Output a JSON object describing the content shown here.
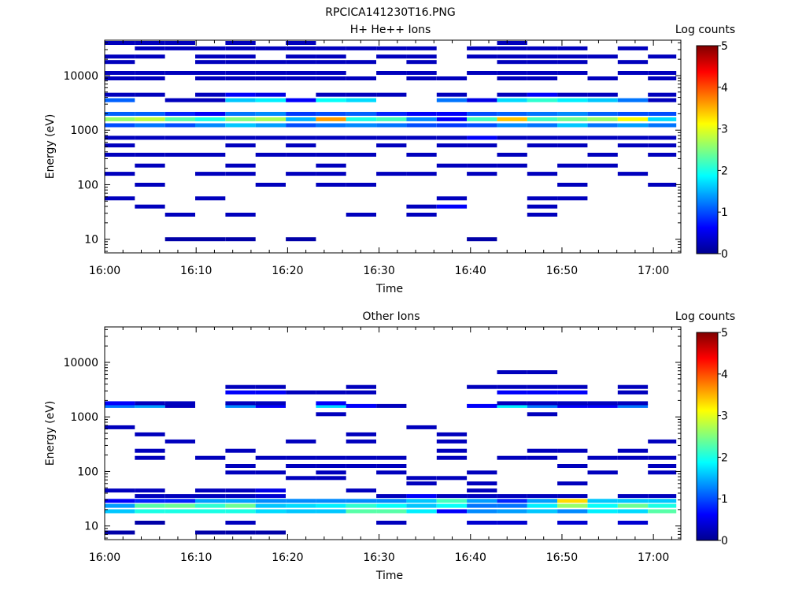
{
  "figure_title": "RPCICA141230T16.PNG",
  "chart_data": [
    {
      "type": "heatmap",
      "title": "H+ He++ Ions",
      "xlabel": "Time",
      "ylabel": "Energy (eV)",
      "x_ticks": [
        "16:00",
        "16:10",
        "16:20",
        "16:30",
        "16:40",
        "16:50",
        "17:00"
      ],
      "x_range_minutes": [
        0,
        63
      ],
      "y_ticks": [
        "10",
        "100",
        "1000",
        "10000"
      ],
      "y_range_log10": [
        0.75,
        4.65
      ],
      "y_scale": "log",
      "colorbar": {
        "label": "Log counts",
        "ticks": [
          "0",
          "1",
          "2",
          "3",
          "4",
          "5"
        ],
        "range": [
          0,
          5
        ]
      },
      "time_columns_minutes": [
        0,
        3.3,
        6.6,
        9.9,
        13.2,
        16.5,
        19.8,
        23.1,
        26.4,
        29.7,
        33.0,
        36.3,
        39.6,
        42.9,
        46.2,
        49.5,
        52.8,
        56.1,
        59.4
      ],
      "rows": [
        {
          "log_e": 1.0,
          "counts": [
            0,
            0,
            0.2,
            0.2,
            0.2,
            0,
            0.2,
            0,
            0,
            0,
            0,
            0,
            0.2,
            0,
            0,
            0,
            0,
            0,
            0
          ]
        },
        {
          "log_e": 1.45,
          "counts": [
            0,
            0,
            0.3,
            0,
            0.3,
            0,
            0,
            0,
            0,
            0,
            0,
            0,
            0,
            0,
            0,
            0,
            0,
            0,
            0
          ]
        },
        {
          "log_e": 1.45,
          "counts": [
            0,
            0,
            0,
            0,
            0,
            0,
            0,
            0,
            0.3,
            0,
            0.3,
            0,
            0,
            0,
            0.3,
            0,
            0,
            0,
            0
          ]
        },
        {
          "log_e": 1.6,
          "counts": [
            0,
            0.3,
            0,
            0,
            0,
            0,
            0,
            0,
            0,
            0,
            0.3,
            0.6,
            0,
            0,
            0.3,
            0,
            0,
            0,
            0
          ]
        },
        {
          "log_e": 1.75,
          "counts": [
            0.3,
            0,
            0,
            0.3,
            0,
            0,
            0,
            0,
            0,
            0,
            0,
            0.3,
            0,
            0,
            0.3,
            0.3,
            0,
            0,
            0
          ]
        },
        {
          "log_e": 2.0,
          "counts": [
            0,
            0.3,
            0,
            0,
            0,
            0.3,
            0,
            0.3,
            0.3,
            0,
            0,
            0,
            0,
            0,
            0,
            0.3,
            0,
            0,
            0.3
          ]
        },
        {
          "log_e": 2.2,
          "counts": [
            0.3,
            0,
            0,
            0.3,
            0.3,
            0,
            0.3,
            0.3,
            0,
            0.3,
            0.3,
            0,
            0.3,
            0,
            0.3,
            0,
            0,
            0.3,
            0
          ]
        },
        {
          "log_e": 2.35,
          "counts": [
            0,
            0.3,
            0,
            0,
            0.3,
            0,
            0,
            0.3,
            0,
            0,
            0,
            0.3,
            0.3,
            0.3,
            0,
            0.3,
            0.3,
            0,
            0
          ]
        },
        {
          "log_e": 2.55,
          "counts": [
            0.3,
            0.3,
            0.3,
            0.3,
            0,
            0.3,
            0.3,
            0.3,
            0.3,
            0,
            0.3,
            0,
            0,
            0.3,
            0,
            0,
            0.3,
            0,
            0.3
          ]
        },
        {
          "log_e": 2.72,
          "counts": [
            0.3,
            0,
            0,
            0,
            0.3,
            0,
            0.3,
            0,
            0,
            0.3,
            0,
            0.3,
            0.3,
            0,
            0.3,
            0.3,
            0,
            0.3,
            0.3
          ]
        },
        {
          "log_e": 2.86,
          "counts": [
            0.3,
            0.3,
            0.3,
            0.3,
            0.3,
            0.3,
            0.3,
            0.3,
            0.3,
            0.3,
            0.3,
            0.3,
            0.6,
            0.3,
            0.3,
            0.3,
            0.3,
            0.3,
            0.3
          ]
        },
        {
          "log_e": 3.09,
          "counts": [
            1.0,
            1.2,
            1.0,
            1.3,
            1.6,
            1.4,
            1.0,
            1.2,
            1.3,
            1.2,
            1.0,
            0.9,
            1.0,
            1.3,
            1.2,
            1.6,
            1.2,
            1.4,
            1.2
          ]
        },
        {
          "log_e": 3.2,
          "counts": [
            2.6,
            2.8,
            2.3,
            2.0,
            2.5,
            2.7,
            1.5,
            3.6,
            2.0,
            2.2,
            1.3,
            0.6,
            2.2,
            3.4,
            2.2,
            2.4,
            2.6,
            3.1,
            1.7
          ]
        },
        {
          "log_e": 3.3,
          "counts": [
            1.1,
            1.1,
            0.8,
            0.6,
            1.2,
            1.3,
            0.9,
            1.0,
            1.1,
            0.8,
            0.6,
            0.6,
            1.0,
            1.1,
            1.2,
            1.3,
            1.1,
            1.0,
            1.0
          ]
        },
        {
          "log_e": 3.55,
          "counts": [
            1.1,
            0,
            0.3,
            0.3,
            1.6,
            1.8,
            0.6,
            1.9,
            1.7,
            0,
            0,
            1.2,
            0.5,
            1.7,
            2.1,
            1.8,
            1.6,
            1.2,
            0.3
          ]
        },
        {
          "log_e": 3.65,
          "counts": [
            0.3,
            0.3,
            0,
            0.3,
            0.6,
            0.5,
            0,
            0.3,
            0.3,
            0.3,
            0,
            0.3,
            0,
            0.3,
            0.6,
            0.3,
            0.3,
            0,
            0.3
          ]
        },
        {
          "log_e": 3.95,
          "counts": [
            0.3,
            0.3,
            0,
            0.3,
            0.3,
            0.3,
            0.3,
            0.3,
            0.3,
            0,
            0.3,
            0.3,
            0,
            0.3,
            0.3,
            0,
            0.3,
            0,
            0.3
          ]
        },
        {
          "log_e": 4.05,
          "counts": [
            0.3,
            0.3,
            0.3,
            0.3,
            0.3,
            0.3,
            0.3,
            0.3,
            0,
            0.3,
            0.3,
            0,
            0.3,
            0.3,
            0.3,
            0.3,
            0,
            0.3,
            0.3
          ]
        },
        {
          "log_e": 4.25,
          "counts": [
            0.3,
            0,
            0,
            0.3,
            0.3,
            0.3,
            0.3,
            0.3,
            0.3,
            0,
            0.3,
            0,
            0,
            0.3,
            0.3,
            0.3,
            0,
            0.3,
            0
          ]
        },
        {
          "log_e": 4.35,
          "counts": [
            0.3,
            0.3,
            0,
            0.3,
            0.3,
            0,
            0.3,
            0.3,
            0,
            0.3,
            0.3,
            0,
            0.3,
            0.3,
            0.3,
            0.3,
            0.3,
            0,
            0.3
          ]
        },
        {
          "log_e": 4.5,
          "counts": [
            0,
            0.3,
            0.3,
            0.3,
            0.3,
            0.3,
            0.3,
            0.3,
            0.3,
            0.3,
            0.3,
            0,
            0.3,
            0.3,
            0.3,
            0.3,
            0,
            0.3,
            0
          ]
        },
        {
          "log_e": 4.6,
          "counts": [
            0.3,
            0.3,
            0.3,
            0,
            0.3,
            0,
            0.3,
            0,
            0,
            0,
            0,
            0,
            0,
            0.3,
            0,
            0,
            0,
            0,
            0
          ]
        }
      ]
    },
    {
      "type": "heatmap",
      "title": "Other Ions",
      "xlabel": "Time",
      "ylabel": "Energy (eV)",
      "x_ticks": [
        "16:00",
        "16:10",
        "16:20",
        "16:30",
        "16:40",
        "16:50",
        "17:00"
      ],
      "x_range_minutes": [
        0,
        63
      ],
      "y_ticks": [
        "10",
        "100",
        "1000",
        "10000"
      ],
      "y_range_log10": [
        0.75,
        4.65
      ],
      "y_scale": "log",
      "colorbar": {
        "label": "Log counts",
        "ticks": [
          "0",
          "1",
          "2",
          "3",
          "4",
          "5"
        ],
        "range": [
          0,
          5
        ]
      },
      "time_columns_minutes": [
        0,
        3.3,
        6.6,
        9.9,
        13.2,
        16.5,
        19.8,
        23.1,
        26.4,
        29.7,
        33.0,
        36.3,
        39.6,
        42.9,
        46.2,
        49.5,
        52.8,
        56.1,
        59.4
      ],
      "rows": [
        {
          "log_e": 0.88,
          "counts": [
            0.2,
            0,
            0,
            0.2,
            0.2,
            0.2,
            0,
            0,
            0,
            0,
            0,
            0,
            0,
            0,
            0,
            0,
            0,
            0,
            0
          ]
        },
        {
          "log_e": 1.06,
          "counts": [
            0,
            0.2,
            0,
            0,
            0.3,
            0,
            0,
            0,
            0,
            0.3,
            0,
            0,
            0.4,
            0.4,
            0,
            0.4,
            0,
            0.4,
            0
          ]
        },
        {
          "log_e": 1.27,
          "counts": [
            1.6,
            2.0,
            2.0,
            2.0,
            2.0,
            1.7,
            1.6,
            1.6,
            2.3,
            2.3,
            1.8,
            0.6,
            1.3,
            1.4,
            1.6,
            1.3,
            1.8,
            1.7,
            2.3
          ]
        },
        {
          "log_e": 1.37,
          "counts": [
            1.4,
            2.3,
            2.4,
            2.1,
            2.4,
            1.6,
            1.7,
            1.8,
            2.1,
            1.9,
            1.6,
            1.9,
            1.2,
            1.2,
            1.8,
            2.6,
            1.9,
            2.4,
            2.0
          ]
        },
        {
          "log_e": 1.46,
          "counts": [
            0.6,
            0.8,
            0.8,
            1.4,
            1.4,
            1.3,
            1.3,
            1.3,
            1.3,
            1.3,
            1.6,
            2.2,
            1.4,
            0.8,
            1.4,
            3.3,
            1.6,
            1.6,
            1.6
          ]
        },
        {
          "log_e": 1.55,
          "counts": [
            0,
            0.3,
            0.3,
            0.3,
            0.3,
            0.4,
            0,
            0,
            0,
            0.3,
            0.6,
            0.3,
            0.3,
            0.3,
            0.3,
            0.3,
            0,
            0.3,
            0.3
          ]
        },
        {
          "log_e": 1.65,
          "counts": [
            0.3,
            0.3,
            0,
            0.3,
            0.3,
            0.5,
            0,
            0,
            0.3,
            0,
            0,
            0,
            0.3,
            0,
            0,
            0,
            0,
            0,
            0
          ]
        },
        {
          "log_e": 1.78,
          "counts": [
            0,
            0,
            0,
            0,
            0,
            0,
            0,
            0,
            0,
            0,
            0.3,
            0,
            0.3,
            0,
            0,
            0.3,
            0,
            0,
            0
          ]
        },
        {
          "log_e": 1.88,
          "counts": [
            0,
            0,
            0,
            0,
            0,
            0,
            0.3,
            0.3,
            0,
            0,
            0.3,
            0.3,
            0,
            0,
            0,
            0,
            0,
            0,
            0
          ]
        },
        {
          "log_e": 1.98,
          "counts": [
            0,
            0,
            0,
            0,
            0.3,
            0.3,
            0,
            0.3,
            0,
            0.3,
            0,
            0,
            0.3,
            0,
            0,
            0,
            0.3,
            0,
            0.3
          ]
        },
        {
          "log_e": 2.1,
          "counts": [
            0,
            0,
            0,
            0,
            0.3,
            0,
            0.3,
            0.3,
            0.3,
            0.3,
            0,
            0,
            0,
            0,
            0,
            0.3,
            0,
            0,
            0.3
          ]
        },
        {
          "log_e": 2.25,
          "counts": [
            0,
            0.3,
            0,
            0.3,
            0,
            0.3,
            0.3,
            0.3,
            0.3,
            0.3,
            0,
            0.3,
            0,
            0.3,
            0.3,
            0,
            0.3,
            0.3,
            0.3
          ]
        },
        {
          "log_e": 2.38,
          "counts": [
            0,
            0.3,
            0,
            0,
            0.3,
            0,
            0,
            0,
            0,
            0,
            0,
            0.3,
            0,
            0,
            0.3,
            0.3,
            0,
            0.3,
            0
          ]
        },
        {
          "log_e": 2.55,
          "counts": [
            0,
            0,
            0.3,
            0,
            0,
            0,
            0.3,
            0,
            0.3,
            0,
            0,
            0.3,
            0,
            0,
            0,
            0,
            0,
            0,
            0.3
          ]
        },
        {
          "log_e": 2.68,
          "counts": [
            0,
            0.3,
            0,
            0,
            0,
            0,
            0,
            0,
            0.3,
            0,
            0,
            0.3,
            0,
            0,
            0,
            0,
            0,
            0,
            0
          ]
        },
        {
          "log_e": 2.81,
          "counts": [
            0.3,
            0,
            0,
            0,
            0,
            0,
            0,
            0,
            0,
            0,
            0.3,
            0,
            0,
            0,
            0,
            0,
            0,
            0,
            0
          ]
        },
        {
          "log_e": 3.05,
          "counts": [
            0,
            0,
            0,
            0,
            0,
            0,
            0,
            0.3,
            0,
            0,
            0,
            0,
            0,
            0,
            0.3,
            0,
            0,
            0,
            0
          ]
        },
        {
          "log_e": 3.2,
          "counts": [
            1.2,
            1.4,
            0.3,
            0,
            1.3,
            0.6,
            0,
            1.7,
            0.6,
            0.3,
            0,
            0,
            0.6,
            1.8,
            1.2,
            0.6,
            0.6,
            1.2,
            0
          ]
        },
        {
          "log_e": 3.25,
          "counts": [
            0.6,
            0.3,
            0.3,
            0,
            0.3,
            0.3,
            0,
            0.6,
            0,
            0,
            0,
            0,
            0,
            0.3,
            0.3,
            0.3,
            0.3,
            0.3,
            0
          ]
        },
        {
          "log_e": 3.45,
          "counts": [
            0,
            0,
            0,
            0,
            0.6,
            0.6,
            0.3,
            0.3,
            0.3,
            0,
            0,
            0,
            0,
            0.6,
            0.6,
            0.6,
            0,
            0.3,
            0
          ]
        },
        {
          "log_e": 3.55,
          "counts": [
            0,
            0,
            0,
            0,
            0.3,
            0.3,
            0,
            0,
            0.3,
            0,
            0,
            0,
            0.3,
            0.3,
            0.3,
            0.3,
            0,
            0.3,
            0
          ]
        },
        {
          "log_e": 3.82,
          "counts": [
            0,
            0,
            0,
            0,
            0,
            0,
            0,
            0,
            0,
            0,
            0,
            0,
            0,
            0.3,
            0.3,
            0,
            0,
            0,
            0
          ]
        }
      ]
    }
  ]
}
